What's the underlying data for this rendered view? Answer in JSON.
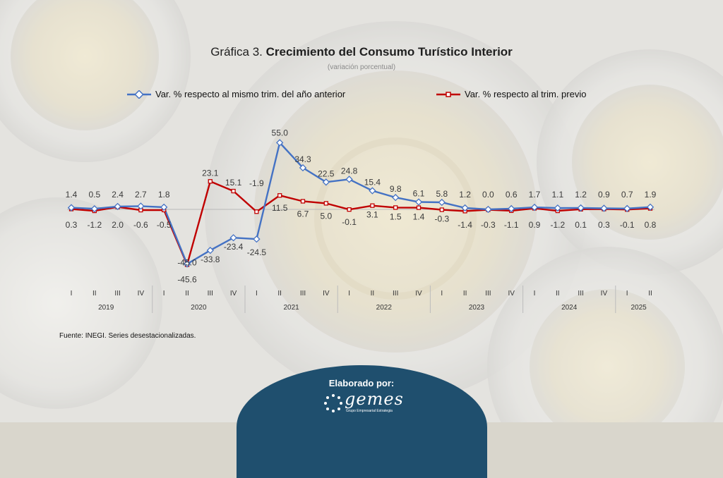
{
  "header": {
    "title_prefix": "Gráfica 3.",
    "title_main": "Crecimiento del Consumo Turístico Interior",
    "subtitle": "(variación porcentual)"
  },
  "source": "Fuente: INEGI. Series desestacionalizadas.",
  "footer": {
    "label": "Elaborado por:",
    "logo_text": "gemes",
    "logo_sub": "Grupo Empresarial Estrategia"
  },
  "colors": {
    "series_annual": "#4472c4",
    "series_quarterly": "#c00000",
    "background": "#d9d6cc"
  },
  "chart_data": {
    "type": "line",
    "title": "Crecimiento del Consumo Turístico Interior",
    "subtitle": "(variación porcentual)",
    "legend_position": "top",
    "grid": false,
    "quarters": [
      "I",
      "II",
      "III",
      "IV",
      "I",
      "II",
      "III",
      "IV",
      "I",
      "II",
      "III",
      "IV",
      "I",
      "II",
      "III",
      "IV",
      "I",
      "II",
      "III",
      "IV",
      "I",
      "II",
      "III",
      "IV",
      "I",
      "II"
    ],
    "years": [
      {
        "label": "2019",
        "start": 0,
        "count": 4
      },
      {
        "label": "2020",
        "start": 4,
        "count": 4
      },
      {
        "label": "2021",
        "start": 8,
        "count": 4
      },
      {
        "label": "2022",
        "start": 12,
        "count": 4
      },
      {
        "label": "2023",
        "start": 16,
        "count": 4
      },
      {
        "label": "2024",
        "start": 20,
        "count": 4
      },
      {
        "label": "2025",
        "start": 24,
        "count": 2
      }
    ],
    "series": [
      {
        "name": "Var. % respecto al mismo trim. del año anterior",
        "values": [
          1.4,
          0.5,
          2.4,
          2.7,
          1.8,
          -45.0,
          -33.8,
          -23.4,
          -24.5,
          55.0,
          34.3,
          22.5,
          24.8,
          15.4,
          9.8,
          6.1,
          5.8,
          1.2,
          0.0,
          0.6,
          1.7,
          1.1,
          1.2,
          0.9,
          0.7,
          1.9
        ]
      },
      {
        "name": "Var. % respecto al trim. previo",
        "values": [
          0.3,
          -1.2,
          2.0,
          -0.6,
          -0.5,
          -45.6,
          23.1,
          15.1,
          -1.9,
          11.5,
          6.7,
          5.0,
          -0.1,
          3.1,
          1.5,
          1.4,
          -0.3,
          -1.4,
          -0.3,
          -1.1,
          0.9,
          -1.2,
          0.1,
          0.3,
          -0.1,
          0.8
        ]
      }
    ],
    "ylim": [
      -50,
      60
    ]
  }
}
